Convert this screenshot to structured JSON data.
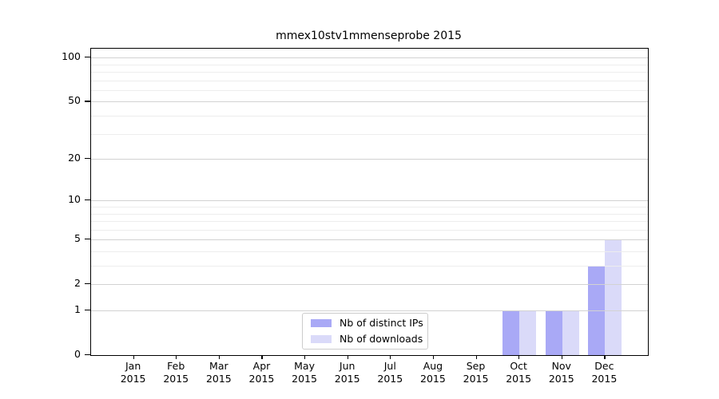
{
  "chart_data": {
    "type": "bar",
    "title": "mmex10stv1mmenseprobe 2015",
    "categories": [
      "Jan",
      "Feb",
      "Mar",
      "Apr",
      "May",
      "Jun",
      "Jul",
      "Aug",
      "Sep",
      "Oct",
      "Nov",
      "Dec"
    ],
    "xlabel_year": "2015",
    "series": [
      {
        "name": "Nb of distinct IPs",
        "color": "#a9a9f6",
        "values": [
          0,
          0,
          0,
          0,
          0,
          0,
          0,
          0,
          0,
          1,
          1,
          3
        ]
      },
      {
        "name": "Nb of downloads",
        "color": "#dadaf9",
        "values": [
          0,
          0,
          0,
          0,
          0,
          0,
          0,
          0,
          0,
          1,
          1,
          5
        ]
      }
    ],
    "yscale": "log1p",
    "ylim": [
      0,
      115
    ],
    "yticks": [
      0,
      1,
      2,
      5,
      10,
      20,
      50,
      100
    ],
    "minor_yticks": [
      3,
      4,
      6,
      7,
      8,
      9,
      30,
      40,
      60,
      70,
      80,
      90
    ],
    "grid": "horizontal",
    "legend_position": "lower center"
  }
}
